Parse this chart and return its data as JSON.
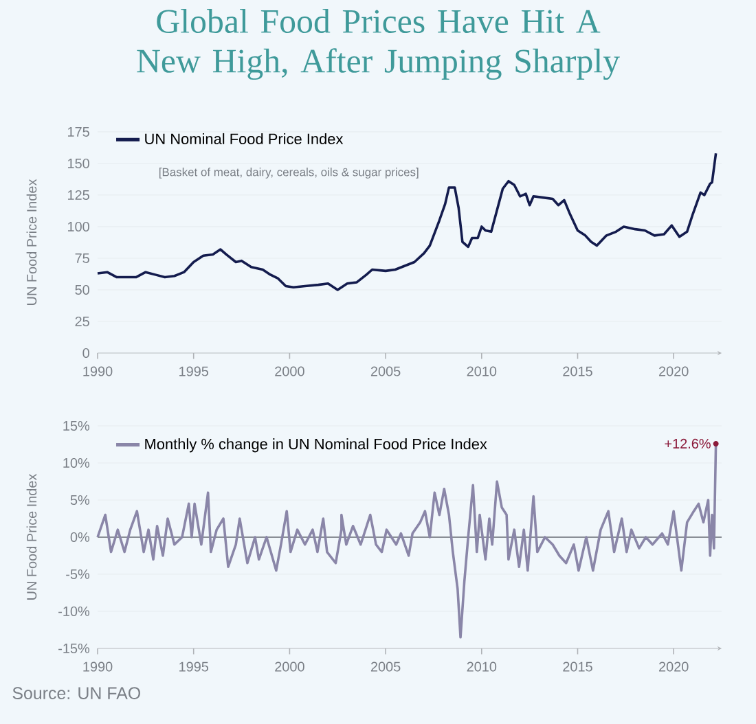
{
  "chart_data": [
    {
      "type": "line",
      "title": "Global Food Prices Have Hit A New High, After Jumping Sharply",
      "ylabel": "UN Food Price Index",
      "xlim": [
        1990,
        2022.5
      ],
      "ylim": [
        0,
        175
      ],
      "xticks": [
        1990,
        1995,
        2000,
        2005,
        2010,
        2015,
        2020
      ],
      "yticks": [
        0,
        25,
        50,
        75,
        100,
        125,
        150,
        175
      ],
      "grid": "y",
      "legend": "top left",
      "annotations": [
        "[Basket of meat, dairy, cereals, oils & sugar prices]"
      ],
      "series": [
        {
          "name": "UN Nominal Food Price Index",
          "color": "#141c4e",
          "x": [
            1990.0,
            1990.5,
            1991,
            1992,
            1992.5,
            1993,
            1993.5,
            1994,
            1994.5,
            1995,
            1995.5,
            1996,
            1996.4,
            1996.7,
            1997.2,
            1997.5,
            1998,
            1998.6,
            1999,
            1999.4,
            1999.8,
            2000.2,
            2000.8,
            2001.5,
            2002,
            2002.5,
            2003,
            2003.5,
            2004,
            2004.3,
            2005,
            2005.5,
            2006,
            2006.5,
            2007,
            2007.3,
            2007.8,
            2008.1,
            2008.3,
            2008.6,
            2008.8,
            2009.0,
            2009.3,
            2009.5,
            2009.8,
            2010.0,
            2010.2,
            2010.5,
            2010.8,
            2011.1,
            2011.4,
            2011.7,
            2012.0,
            2012.3,
            2012.5,
            2012.7,
            2013.2,
            2013.7,
            2014.0,
            2014.3,
            2014.6,
            2015.0,
            2015.4,
            2015.7,
            2016.0,
            2016.5,
            2017,
            2017.4,
            2018,
            2018.5,
            2019,
            2019.5,
            2019.9,
            2020.3,
            2020.7,
            2021.0,
            2021.4,
            2021.6,
            2021.9,
            2022.0,
            2022.2
          ],
          "values": [
            63,
            64,
            60,
            60,
            64,
            62,
            60,
            61,
            64,
            72,
            77,
            78,
            82,
            78,
            72,
            73,
            68,
            66,
            62,
            59,
            53,
            52,
            53,
            54,
            55,
            50,
            55,
            56,
            62,
            66,
            65,
            66,
            69,
            72,
            79,
            85,
            105,
            118,
            131,
            131,
            115,
            88,
            84,
            91,
            91,
            100,
            97,
            96,
            113,
            130,
            136,
            133,
            124,
            126,
            117,
            124,
            123,
            122,
            117,
            121,
            110,
            97,
            93,
            88,
            85,
            93,
            96,
            100,
            98,
            97,
            93,
            94,
            101,
            92,
            96,
            110,
            127,
            125,
            134,
            135,
            158
          ]
        }
      ]
    },
    {
      "type": "line",
      "ylabel": "UN Food Price Index",
      "xlim": [
        1990,
        2022.5
      ],
      "ylim": [
        -15,
        15
      ],
      "xticks": [
        1990,
        1995,
        2000,
        2005,
        2010,
        2015,
        2020
      ],
      "yticks": [
        {
          "value": -15,
          "label": "-15%"
        },
        {
          "value": -10,
          "label": "-10%"
        },
        {
          "value": -5,
          "label": "-5%"
        },
        {
          "value": 0,
          "label": "0%"
        },
        {
          "value": 5,
          "label": "5%"
        },
        {
          "value": 10,
          "label": "10%"
        },
        {
          "value": 15,
          "label": "15%"
        }
      ],
      "grid": "y",
      "legend": "top left",
      "ref_lines": [
        {
          "axis": "y",
          "value": 0,
          "color": "#8a8f96"
        }
      ],
      "annotations": [
        "Source: UN FAO",
        {
          "text": "+12.6%",
          "x": 2022.2,
          "y": 12.6
        }
      ],
      "series": [
        {
          "name": "Monthly % change in UN Nominal Food Price Index",
          "color": "#8a86a8",
          "x": [
            1990.0,
            1990.4,
            1990.7,
            1991.05,
            1991.4,
            1991.7,
            1992.05,
            1992.4,
            1992.65,
            1992.9,
            1993.1,
            1993.4,
            1993.65,
            1994.0,
            1994.4,
            1994.75,
            1994.9,
            1995.05,
            1995.4,
            1995.75,
            1995.9,
            1996.2,
            1996.55,
            1996.8,
            1997.2,
            1997.4,
            1997.8,
            1998.2,
            1998.4,
            1998.8,
            1999.3,
            1999.55,
            1999.85,
            2000.05,
            2000.4,
            2000.8,
            2001.2,
            2001.45,
            2001.75,
            2001.95,
            2002.4,
            2002.7,
            2002.7,
            2002.95,
            2003.3,
            2003.7,
            2004.2,
            2004.5,
            2004.8,
            2005.05,
            2005.55,
            2005.8,
            2006.2,
            2006.4,
            2006.8,
            2007.05,
            2007.3,
            2007.55,
            2007.8,
            2008.05,
            2008.3,
            2008.5,
            2008.75,
            2008.9,
            2009.1,
            2009.3,
            2009.55,
            2009.75,
            2009.9,
            2010.2,
            2010.4,
            2010.55,
            2010.8,
            2011.05,
            2011.3,
            2011.4,
            2011.7,
            2011.95,
            2012.2,
            2012.4,
            2012.7,
            2012.9,
            2013.3,
            2013.7,
            2014.05,
            2014.4,
            2014.8,
            2015.05,
            2015.45,
            2015.8,
            2016.2,
            2016.6,
            2016.9,
            2017.3,
            2017.55,
            2017.8,
            2018.2,
            2018.55,
            2018.9,
            2019.4,
            2019.7,
            2020.0,
            2020.4,
            2020.7,
            2021.05,
            2021.3,
            2021.55,
            2021.8,
            2021.9,
            2022.0,
            2022.1,
            2022.2
          ],
          "values": [
            0,
            3,
            -2,
            1,
            -2,
            1,
            3.5,
            -2,
            1,
            -3,
            1.5,
            -2.5,
            2.5,
            -1,
            0,
            4.5,
            0,
            4.5,
            -1,
            6,
            -2,
            1,
            2.5,
            -4,
            -1,
            2.5,
            -3.5,
            0,
            -3,
            0,
            -4.5,
            -1,
            3.5,
            -2,
            1,
            -1,
            1,
            -2,
            2.5,
            -2,
            -3.5,
            1,
            3,
            -1,
            1.5,
            -1,
            3,
            -1,
            -2,
            1,
            -1,
            0.5,
            -2.5,
            0.5,
            2,
            3.5,
            0,
            6,
            3,
            6.5,
            3,
            -2,
            -7,
            -13.5,
            -6,
            0,
            7,
            -2,
            3,
            -3,
            2.5,
            -1,
            7.5,
            4,
            3,
            -3,
            1,
            -4,
            1,
            -4.5,
            5.5,
            -2,
            0,
            -1,
            -2.5,
            -3.5,
            -1,
            -4.5,
            0,
            -4.5,
            1,
            3.5,
            -2,
            2.5,
            -2,
            1,
            -1.5,
            0,
            -1,
            0.5,
            -1,
            3.5,
            -4.5,
            2,
            3.5,
            4.5,
            2,
            5,
            -2.5,
            3,
            -1.5,
            12.6
          ]
        }
      ]
    }
  ]
}
